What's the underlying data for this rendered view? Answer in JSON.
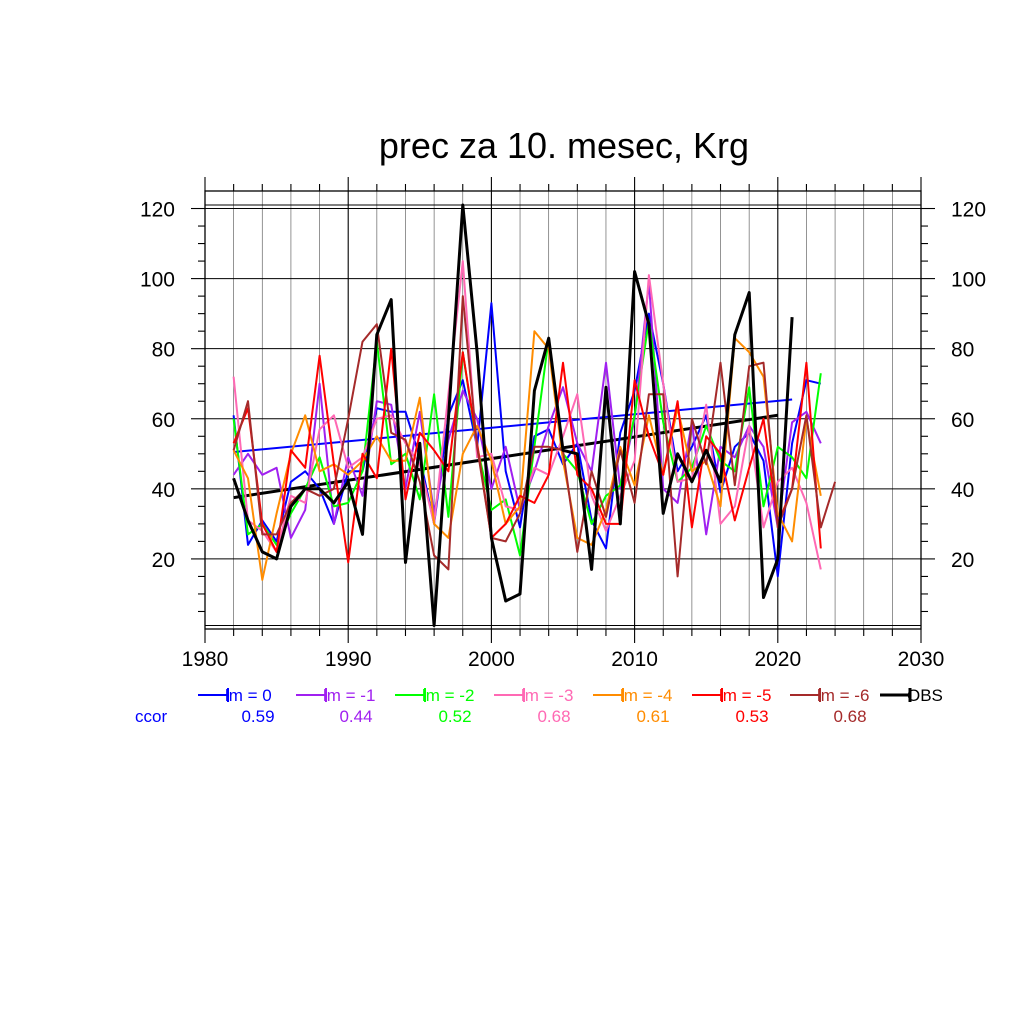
{
  "chart_data": {
    "type": "line",
    "title": "prec za 10. mesec, Krg",
    "xlabel": "",
    "ylabel": "",
    "xlim": [
      1980,
      2030
    ],
    "ylim": [
      0,
      125
    ],
    "x_ticks": [
      "1980",
      "1990",
      "2000",
      "2010",
      "2020",
      "2030"
    ],
    "y_ticks": [
      "20",
      "40",
      "60",
      "80",
      "100",
      "120"
    ],
    "x_tick_values": [
      1980,
      1990,
      2000,
      2010,
      2020,
      2030
    ],
    "y_tick_values": [
      20,
      40,
      60,
      80,
      100,
      120
    ],
    "grid": true,
    "legend_position": "bottom",
    "ccor_label": "ccor",
    "series": [
      {
        "name": "lm = 0",
        "color": "#0000ff",
        "ccor": "0.59",
        "x_start": 1982,
        "values": [
          61,
          24,
          31,
          25,
          42,
          45,
          40,
          30,
          45,
          45,
          63,
          62,
          62,
          49,
          30,
          61,
          71,
          52,
          93,
          45,
          29,
          55,
          57,
          47,
          53,
          31,
          23,
          56,
          68,
          90,
          70,
          45,
          52,
          61,
          39,
          52,
          56,
          48,
          15,
          53,
          71,
          70
        ]
      },
      {
        "name": "lm = -1",
        "color": "#a020f0",
        "ccor": "0.44",
        "x_start": 1982,
        "values": [
          44,
          50,
          44,
          46,
          26,
          34,
          70,
          30,
          49,
          38,
          65,
          64,
          40,
          62,
          33,
          54,
          68,
          60,
          40,
          52,
          34,
          45,
          58,
          69,
          53,
          45,
          76,
          40,
          60,
          99,
          40,
          36,
          59,
          27,
          52,
          49,
          58,
          52,
          29,
          59,
          62,
          53
        ]
      },
      {
        "name": "lm = -2",
        "color": "#00ff00",
        "ccor": "0.52",
        "x_start": 1982,
        "values": [
          60,
          27,
          30,
          24,
          33,
          40,
          49,
          35,
          36,
          45,
          82,
          47,
          50,
          37,
          67,
          32,
          79,
          52,
          34,
          37,
          21,
          52,
          83,
          50,
          45,
          30,
          38,
          41,
          61,
          88,
          59,
          42,
          46,
          58,
          48,
          45,
          69,
          35,
          52,
          49,
          43,
          73
        ]
      },
      {
        "name": "lm = -3",
        "color": "#ff69b4",
        "ccor": "0.68",
        "x_start": 1982,
        "values": [
          72,
          31,
          28,
          22,
          38,
          36,
          57,
          61,
          46,
          49,
          60,
          61,
          53,
          47,
          30,
          67,
          105,
          49,
          50,
          35,
          34,
          46,
          44,
          55,
          67,
          38,
          28,
          38,
          48,
          101,
          70,
          42,
          43,
          64,
          30,
          35,
          58,
          29,
          42,
          46,
          36,
          17
        ]
      },
      {
        "name": "lm = -4",
        "color": "#ff8c00",
        "ccor": "0.61",
        "x_start": 1982,
        "values": [
          51,
          43,
          14,
          33,
          50,
          61,
          45,
          47,
          44,
          48,
          55,
          48,
          48,
          66,
          30,
          26,
          50,
          58,
          48,
          30,
          35,
          85,
          80,
          48,
          26,
          24,
          34,
          52,
          41,
          61,
          44,
          63,
          45,
          48,
          35,
          83,
          79,
          72,
          33,
          25,
          60,
          38
        ]
      },
      {
        "name": "lm = -5",
        "color": "#ff0000",
        "ccor": "0.53",
        "x_start": 1982,
        "values": [
          53,
          63,
          30,
          22,
          51,
          46,
          78,
          47,
          19,
          50,
          43,
          80,
          37,
          56,
          51,
          45,
          79,
          53,
          26,
          30,
          38,
          36,
          44,
          76,
          44,
          40,
          30,
          30,
          71,
          55,
          44,
          65,
          29,
          55,
          50,
          31,
          46,
          60,
          30,
          40,
          76,
          23
        ]
      },
      {
        "name": "lm = -6",
        "color": "#a52a2a",
        "ccor": "0.68",
        "x_start": 1982,
        "values": [
          51,
          65,
          27,
          27,
          36,
          40,
          38,
          40,
          60,
          82,
          87,
          56,
          54,
          42,
          21,
          17,
          95,
          52,
          26,
          25,
          33,
          52,
          52,
          51,
          22,
          45,
          32,
          51,
          36,
          67,
          67,
          15,
          60,
          47,
          76,
          41,
          75,
          76,
          29,
          40,
          61,
          29,
          42
        ]
      },
      {
        "name": "OBS",
        "color": "#000000",
        "x_start": 1982,
        "values": [
          43,
          31,
          22,
          20,
          35,
          40,
          40,
          36,
          42,
          27,
          84,
          94,
          19,
          53,
          1,
          60,
          121,
          79,
          26,
          8,
          10,
          68,
          83,
          51,
          50,
          17,
          69,
          30,
          102,
          87,
          33,
          50,
          42,
          51,
          42,
          84,
          96,
          9,
          20,
          89
        ]
      }
    ],
    "trends": [
      {
        "series": "lm = 0",
        "color": "#0000ff",
        "x": [
          1982,
          2021
        ],
        "y": [
          50.5,
          65.5
        ]
      },
      {
        "series": "OBS",
        "color": "#000000",
        "x": [
          1982,
          2020
        ],
        "y": [
          37.5,
          61
        ]
      }
    ]
  }
}
